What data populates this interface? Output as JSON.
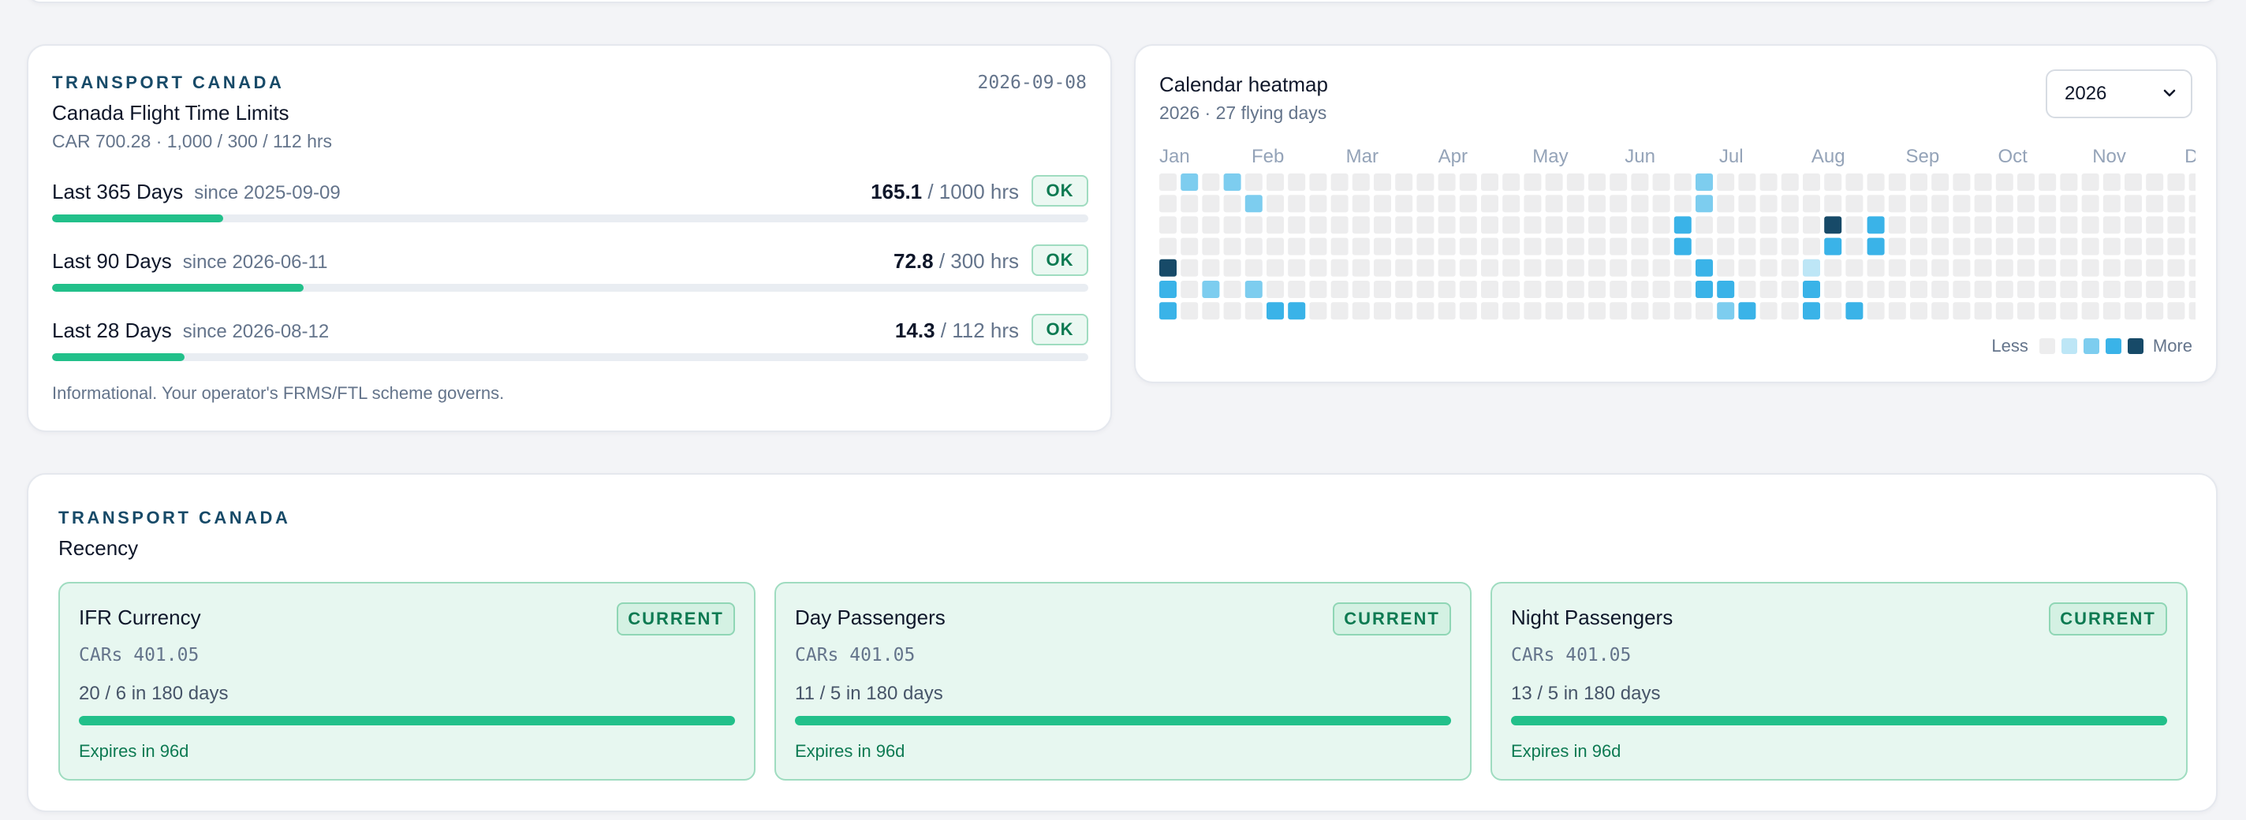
{
  "ftl": {
    "eyebrow": "TRANSPORT CANADA",
    "title": "Canada Flight Time Limits",
    "subtitle": "CAR 700.28 · 1,000 / 300 / 112 hrs",
    "date": "2026-09-08",
    "rows": [
      {
        "label": "Last 365 Days",
        "since": "since 2025-09-09",
        "value": "165.1",
        "limit": " / 1000 hrs",
        "status": "OK",
        "progress": 0.165
      },
      {
        "label": "Last 90 Days",
        "since": "since 2026-06-11",
        "value": "72.8",
        "limit": " / 300 hrs",
        "status": "OK",
        "progress": 0.243
      },
      {
        "label": "Last 28 Days",
        "since": "since 2026-08-12",
        "value": "14.3",
        "limit": " / 112 hrs",
        "status": "OK",
        "progress": 0.128
      }
    ],
    "note": "Informational. Your operator's FRMS/FTL scheme governs."
  },
  "heatmap": {
    "title": "Calendar heatmap",
    "subtitle": "2026 · 27 flying days",
    "year_selected": "2026",
    "months": [
      "Jan",
      "Feb",
      "Mar",
      "Apr",
      "May",
      "Jun",
      "Jul",
      "Aug",
      "Sep",
      "Oct",
      "Nov",
      "D"
    ],
    "legend_less": "Less",
    "legend_more": "More",
    "colors": {
      "empty": "#ededee",
      "level1": "#bde6f6",
      "level2": "#7dcdef",
      "level3": "#3ab3e8",
      "level4": "#174a68"
    },
    "active_cells": [
      {
        "week": 0,
        "day": 5,
        "level": 4
      },
      {
        "week": 0,
        "day": 6,
        "level": 3
      },
      {
        "week": 0,
        "day": 7,
        "level": 3
      },
      {
        "week": 1,
        "day": 1,
        "level": 2
      },
      {
        "week": 2,
        "day": 6,
        "level": 2
      },
      {
        "week": 3,
        "day": 1,
        "level": 2
      },
      {
        "week": 4,
        "day": 2,
        "level": 2
      },
      {
        "week": 4,
        "day": 6,
        "level": 2
      },
      {
        "week": 5,
        "day": 7,
        "level": 3
      },
      {
        "week": 6,
        "day": 7,
        "level": 3
      },
      {
        "week": 24,
        "day": 3,
        "level": 3
      },
      {
        "week": 24,
        "day": 4,
        "level": 3
      },
      {
        "week": 25,
        "day": 1,
        "level": 2
      },
      {
        "week": 25,
        "day": 2,
        "level": 2
      },
      {
        "week": 25,
        "day": 5,
        "level": 3
      },
      {
        "week": 25,
        "day": 6,
        "level": 3
      },
      {
        "week": 26,
        "day": 6,
        "level": 3
      },
      {
        "week": 26,
        "day": 7,
        "level": 2
      },
      {
        "week": 27,
        "day": 7,
        "level": 3
      },
      {
        "week": 30,
        "day": 5,
        "level": 1
      },
      {
        "week": 30,
        "day": 6,
        "level": 3
      },
      {
        "week": 30,
        "day": 7,
        "level": 3
      },
      {
        "week": 31,
        "day": 3,
        "level": 4
      },
      {
        "week": 31,
        "day": 4,
        "level": 3
      },
      {
        "week": 32,
        "day": 7,
        "level": 3
      },
      {
        "week": 33,
        "day": 3,
        "level": 3
      },
      {
        "week": 33,
        "day": 4,
        "level": 3
      }
    ]
  },
  "recency": {
    "eyebrow": "TRANSPORT CANADA",
    "title": "Recency",
    "items": [
      {
        "title": "IFR Currency",
        "status": "CURRENT",
        "ref": "CARs 401.05",
        "count": "20 / 6 in 180 days",
        "expires": "Expires in 96d"
      },
      {
        "title": "Day Passengers",
        "status": "CURRENT",
        "ref": "CARs 401.05",
        "count": "11 / 5 in 180 days",
        "expires": "Expires in 96d"
      },
      {
        "title": "Night Passengers",
        "status": "CURRENT",
        "ref": "CARs 401.05",
        "count": "13 / 5 in 180 days",
        "expires": "Expires in 96d"
      }
    ]
  }
}
